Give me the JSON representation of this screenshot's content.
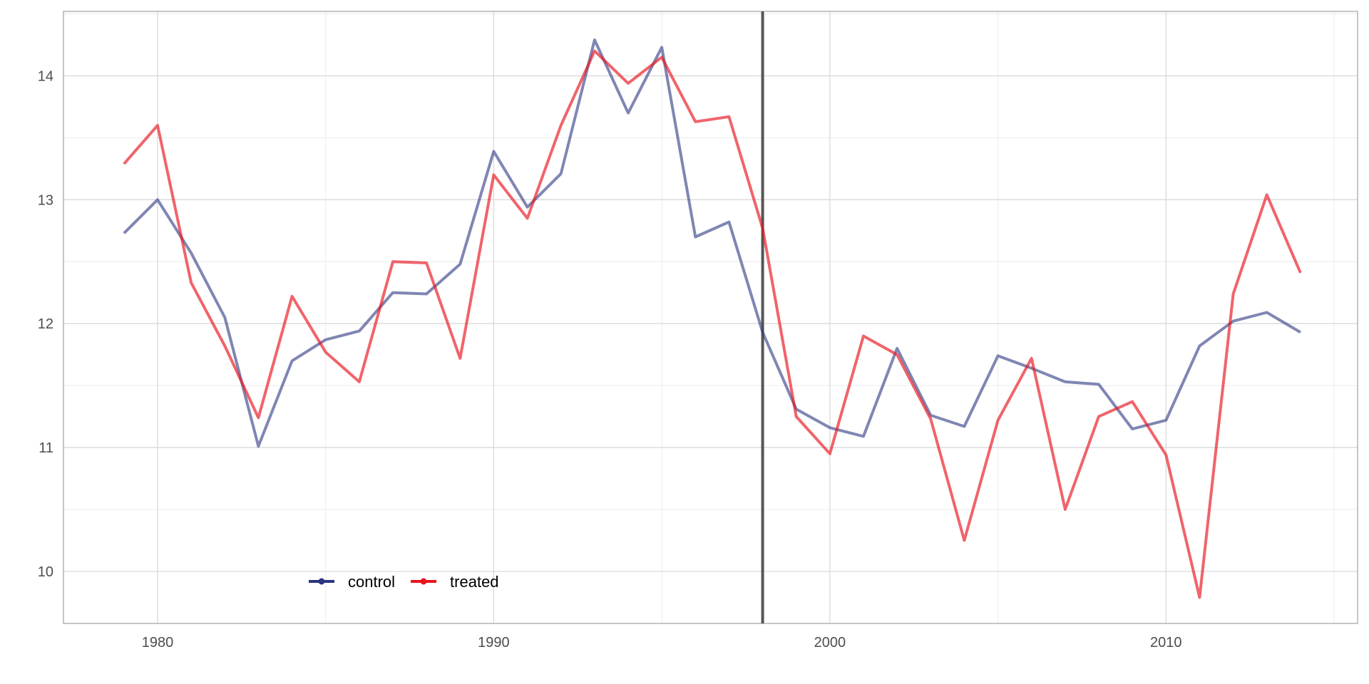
{
  "chart_data": {
    "type": "line",
    "title": "",
    "xlabel": "",
    "ylabel": "",
    "xlim": [
      1977.2,
      2015.7
    ],
    "ylim": [
      9.58,
      14.52
    ],
    "x_ticks": [
      1980,
      1990,
      2000,
      2010
    ],
    "x_tick_labels": [
      "1980",
      "1990",
      "2000",
      "2010"
    ],
    "y_ticks": [
      10,
      11,
      12,
      13,
      14
    ],
    "y_tick_labels": [
      "10",
      "11",
      "12",
      "13",
      "14"
    ],
    "grid": true,
    "legend_position": "bottom-left",
    "vertical_line": 1998,
    "x": [
      1979,
      1980,
      1981,
      1982,
      1983,
      1984,
      1985,
      1986,
      1987,
      1988,
      1989,
      1990,
      1991,
      1992,
      1993,
      1994,
      1995,
      1996,
      1997,
      1998,
      1999,
      2000,
      2001,
      2002,
      2003,
      2004,
      2005,
      2006,
      2007,
      2008,
      2009,
      2010,
      2011,
      2012,
      2013,
      2014
    ],
    "series": [
      {
        "name": "control",
        "color": "#2b3580",
        "values": [
          12.73,
          13.0,
          12.57,
          12.05,
          11.01,
          11.7,
          11.87,
          11.94,
          12.25,
          12.24,
          12.48,
          13.39,
          12.94,
          13.21,
          14.29,
          13.7,
          14.23,
          12.7,
          12.82,
          11.93,
          11.31,
          11.16,
          11.09,
          11.8,
          11.26,
          11.17,
          11.74,
          11.64,
          11.53,
          11.51,
          11.15,
          11.22,
          11.82,
          12.02,
          12.09,
          11.93
        ]
      },
      {
        "name": "treated",
        "color": "#e8131e",
        "values": [
          13.29,
          13.6,
          12.33,
          11.82,
          11.24,
          12.22,
          11.77,
          11.53,
          12.5,
          12.49,
          11.72,
          13.2,
          12.85,
          13.6,
          14.2,
          13.94,
          14.15,
          13.63,
          13.67,
          12.77,
          11.25,
          10.95,
          11.9,
          11.75,
          11.23,
          10.25,
          11.22,
          11.72,
          10.5,
          11.25,
          11.37,
          10.94,
          9.79,
          12.24,
          13.04,
          12.41
        ]
      }
    ],
    "legend": [
      {
        "label": "control",
        "color": "#2b3580"
      },
      {
        "label": "treated",
        "color": "#e8131e"
      }
    ]
  }
}
